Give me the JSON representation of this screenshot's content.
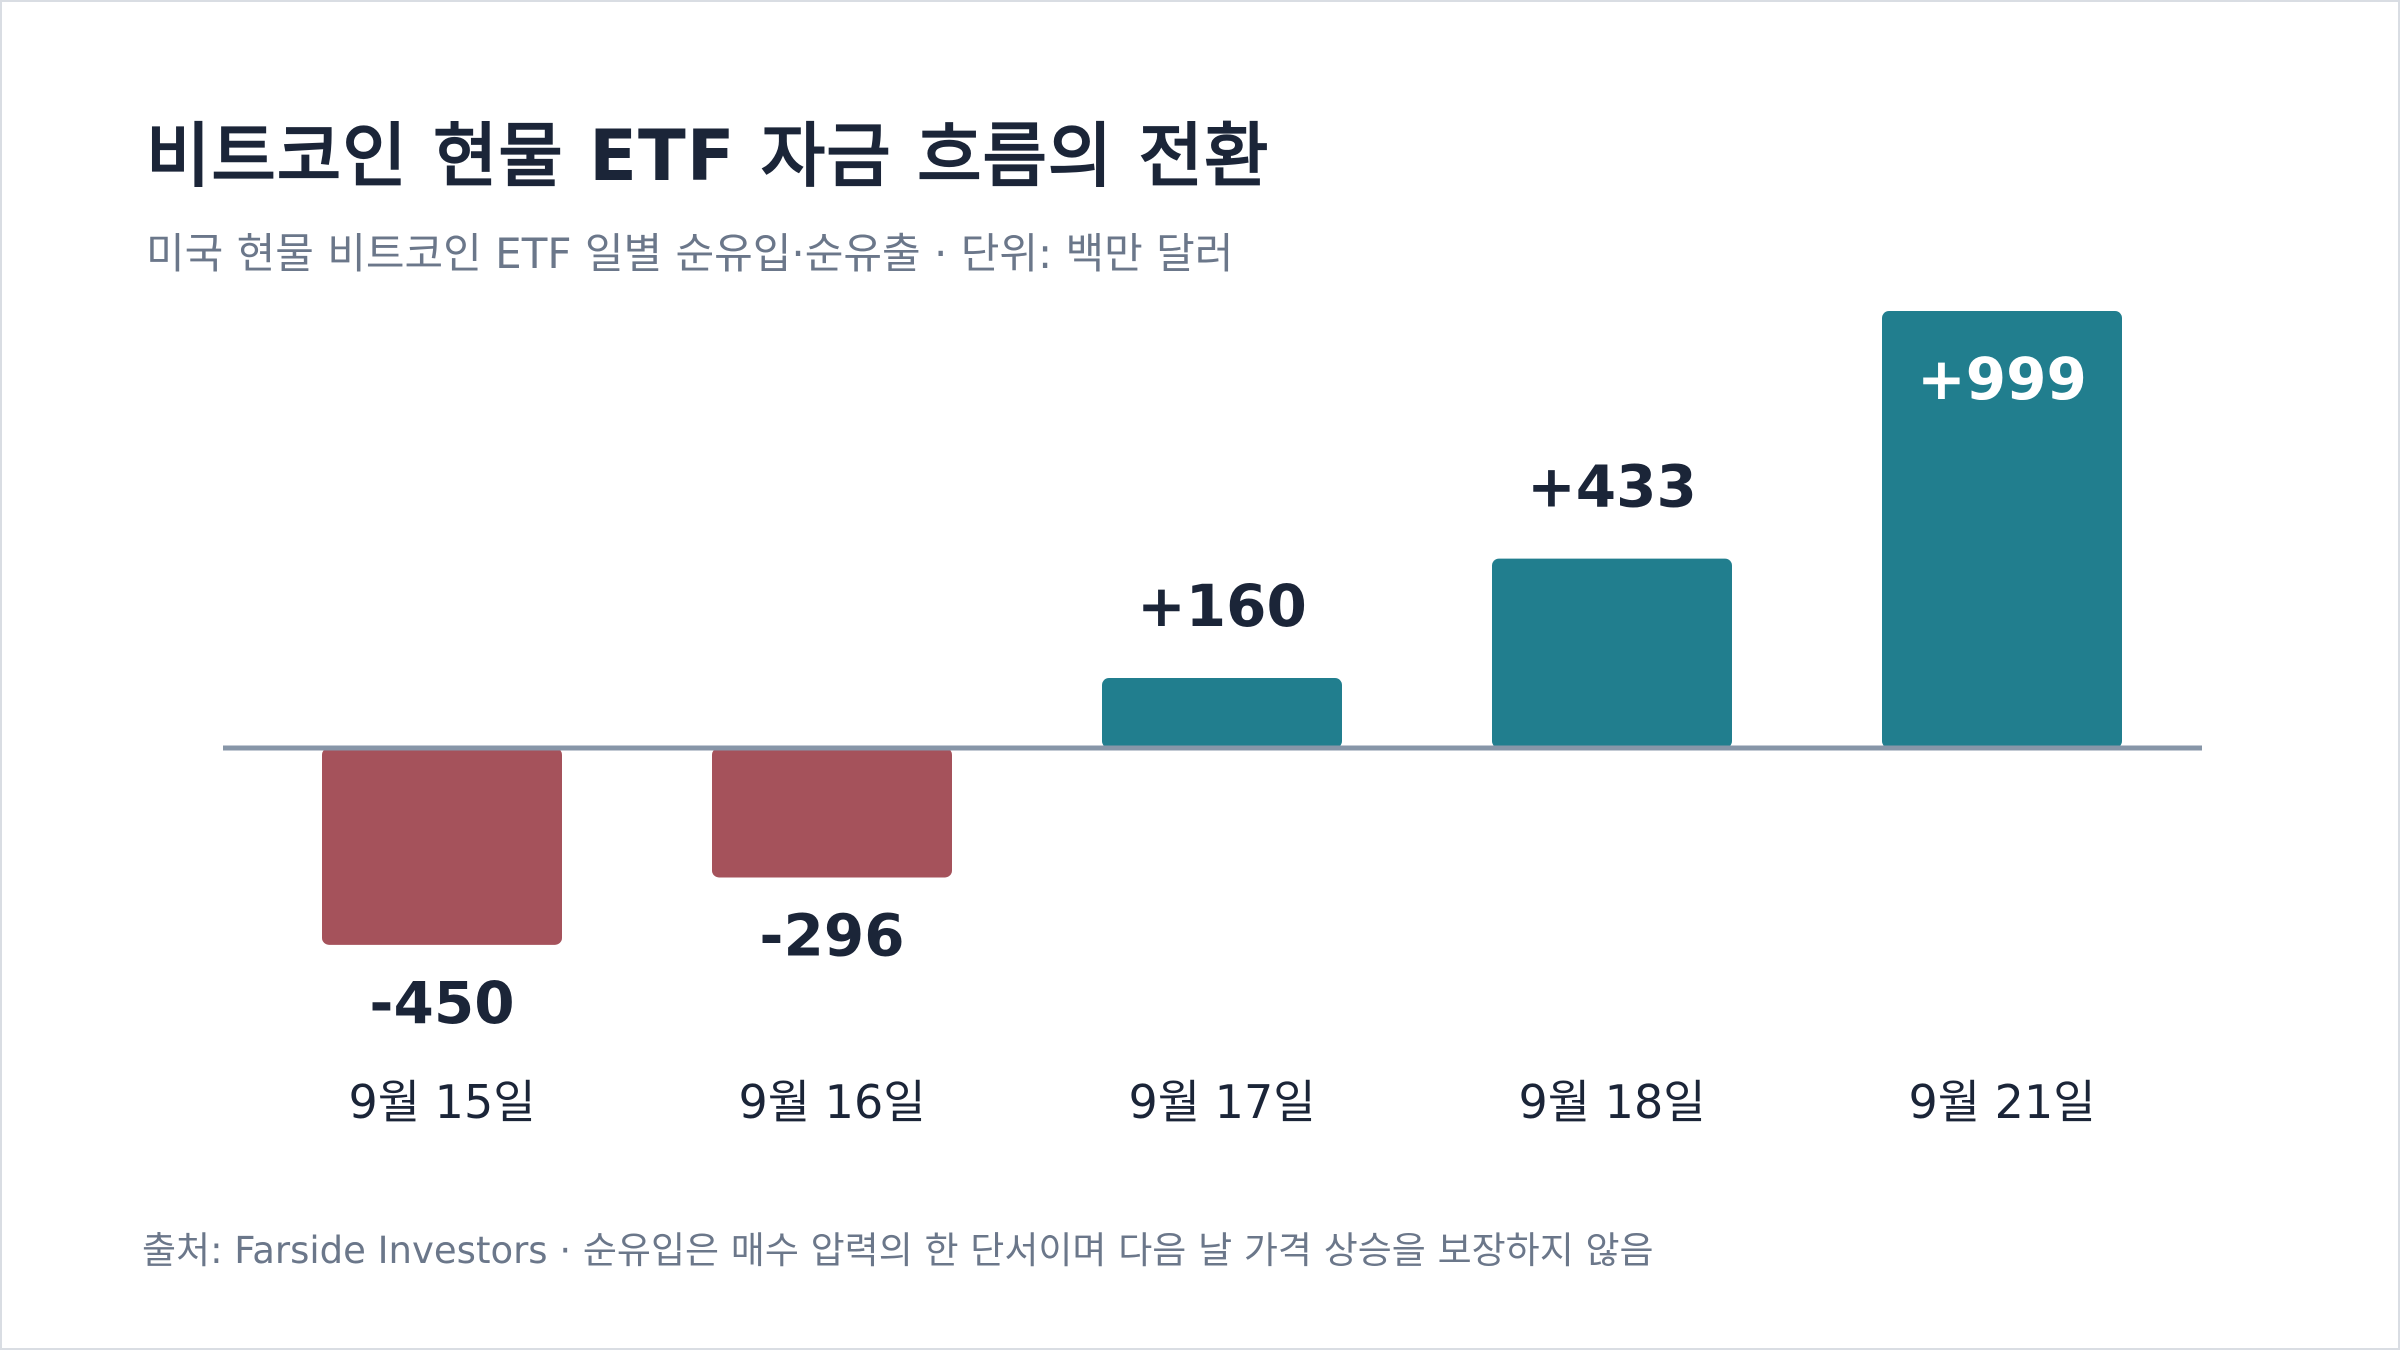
{
  "header": {
    "title": "비트코인 현물 ETF 자금 흐름의 전환",
    "subtitle": "미국 현물 비트코인 ETF 일별 순유입·순유출 · 단위: 백만 달러"
  },
  "footer": {
    "note": "출처: Farside Investors · 순유입은 매수 압력의 한 단서이며 다음 날 가격 상승을 보장하지 않음"
  },
  "colors": {
    "positive": "#217e8e",
    "negative": "#a5525b",
    "baseline": "#8796a8",
    "label_dark": "#1b2538",
    "label_on_bar": "#ffffff"
  },
  "chart_data": {
    "type": "bar",
    "title": "비트코인 현물 ETF 자금 흐름의 전환",
    "subtitle": "미국 현물 비트코인 ETF 일별 순유입·순유출 · 단위: 백만 달러",
    "categories": [
      "9월 15일",
      "9월 16일",
      "9월 17일",
      "9월 18일",
      "9월 21일"
    ],
    "values": [
      -450,
      -296,
      160,
      433,
      999
    ],
    "value_labels": [
      "-450",
      "-296",
      "+160",
      "+433",
      "+999"
    ],
    "xlabel": "",
    "ylabel": "",
    "ylim": [
      -450,
      999
    ],
    "grid": false,
    "legend": "none"
  }
}
